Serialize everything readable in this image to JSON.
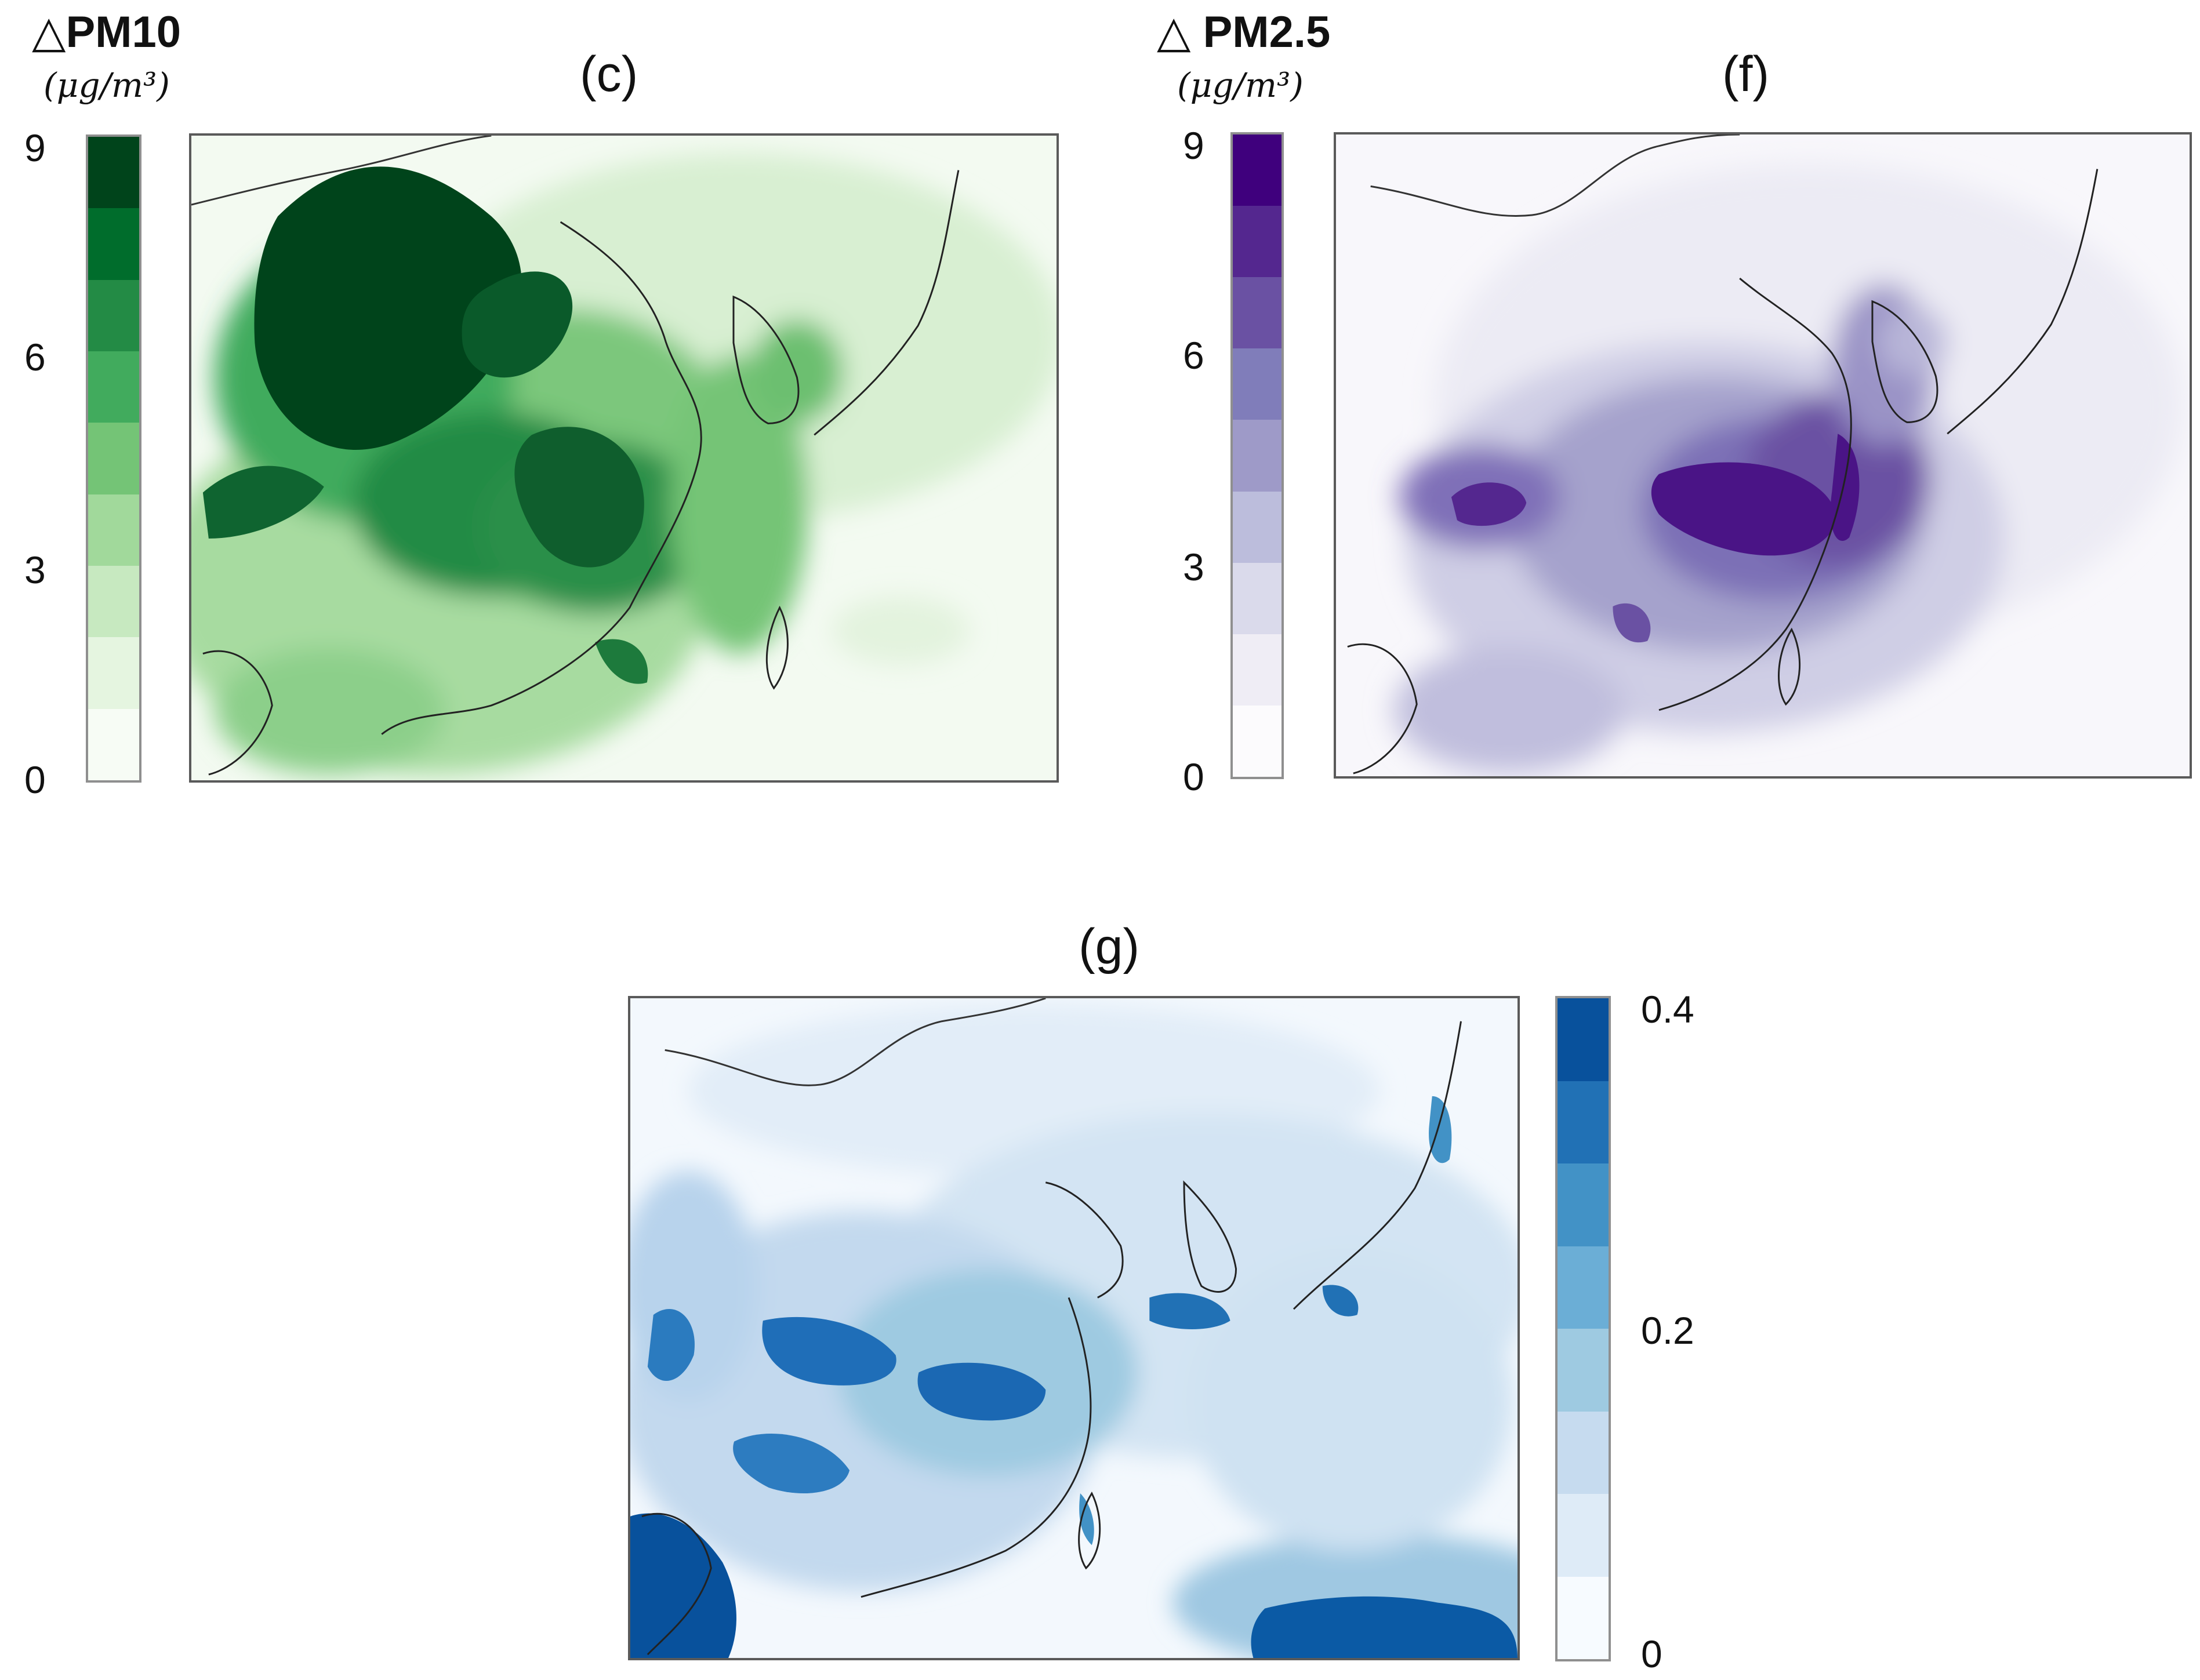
{
  "panels": {
    "c": {
      "variable": "△PM10",
      "unit": "(μg/m³)",
      "label": "(c)",
      "ticks": [
        "9",
        "6",
        "3",
        "0"
      ],
      "colors": [
        "#00441b",
        "#006d2c",
        "#238b45",
        "#41ab5d",
        "#74c476",
        "#a1d99b",
        "#c7e9c0",
        "#e5f5e0",
        "#f7fcf5"
      ]
    },
    "f": {
      "variable": "△ PM2.5",
      "unit": "(μg/m³)",
      "label": "(f)",
      "ticks": [
        "9",
        "6",
        "3",
        "0"
      ],
      "colors": [
        "#3f007d",
        "#54278f",
        "#6a51a3",
        "#807dba",
        "#9e9ac8",
        "#bcbddc",
        "#dadaeb",
        "#efedf5",
        "#fcfbfd"
      ]
    },
    "g": {
      "label": "(g)",
      "ticks": [
        "0.4",
        "0.2",
        "0"
      ],
      "colors": [
        "#08519c",
        "#2171b5",
        "#4292c6",
        "#6baed6",
        "#9ecae1",
        "#c6dbef",
        "#deebf7",
        "#f7fbff"
      ]
    }
  }
}
